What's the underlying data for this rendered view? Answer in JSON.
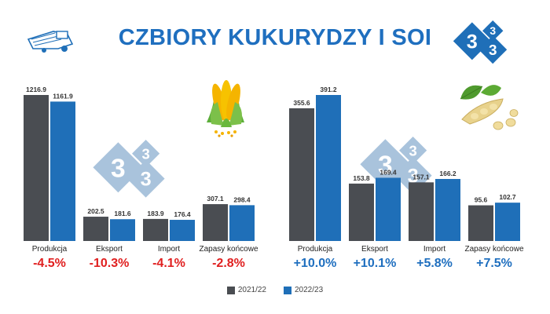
{
  "title": "CZBIORY KUKURYDZY I SOI",
  "colors": {
    "title": "#1f6fbf",
    "series_2021_22": "#4a4d52",
    "series_2022_23": "#1f6fb8",
    "negative": "#e02020",
    "positive": "#1f6fbf",
    "logo": "#1f6fb8",
    "watermark": "#a9c3dc"
  },
  "logo_digits": [
    "3",
    "3",
    "3"
  ],
  "watermark_digits": [
    "3",
    "3",
    "3"
  ],
  "icons": {
    "top_left": "harvester-icon",
    "corn": "corn-icon",
    "soy": "soybean-icon",
    "logo": "three-diamond-logo"
  },
  "chart_data": [
    {
      "type": "bar",
      "categories": [
        "Produkcja",
        "Eksport",
        "Import",
        "Zapasy końcowe"
      ],
      "series": [
        {
          "name": "2021/22",
          "values": [
            1216.9,
            202.5,
            183.9,
            307.1
          ]
        },
        {
          "name": "2022/23",
          "values": [
            1161.9,
            181.6,
            176.4,
            298.4
          ]
        }
      ],
      "changes": [
        "-4.5%",
        "-10.3%",
        "-4.1%",
        "-2.8%"
      ],
      "ylim": [
        0,
        1216.9
      ]
    },
    {
      "type": "bar",
      "categories": [
        "Produkcja",
        "Eksport",
        "Import",
        "Zapasy końcowe"
      ],
      "series": [
        {
          "name": "2021/22",
          "values": [
            355.6,
            153.8,
            157.1,
            95.6
          ]
        },
        {
          "name": "2022/23",
          "values": [
            391.2,
            169.4,
            166.2,
            102.7
          ]
        }
      ],
      "changes": [
        "+10.0%",
        "+10.1%",
        "+5.8%",
        "+7.5%"
      ],
      "ylim": [
        0,
        391.2
      ]
    }
  ],
  "legend": [
    {
      "label": "2021/22",
      "color": "#4a4d52"
    },
    {
      "label": "2022/23",
      "color": "#1f6fb8"
    }
  ]
}
